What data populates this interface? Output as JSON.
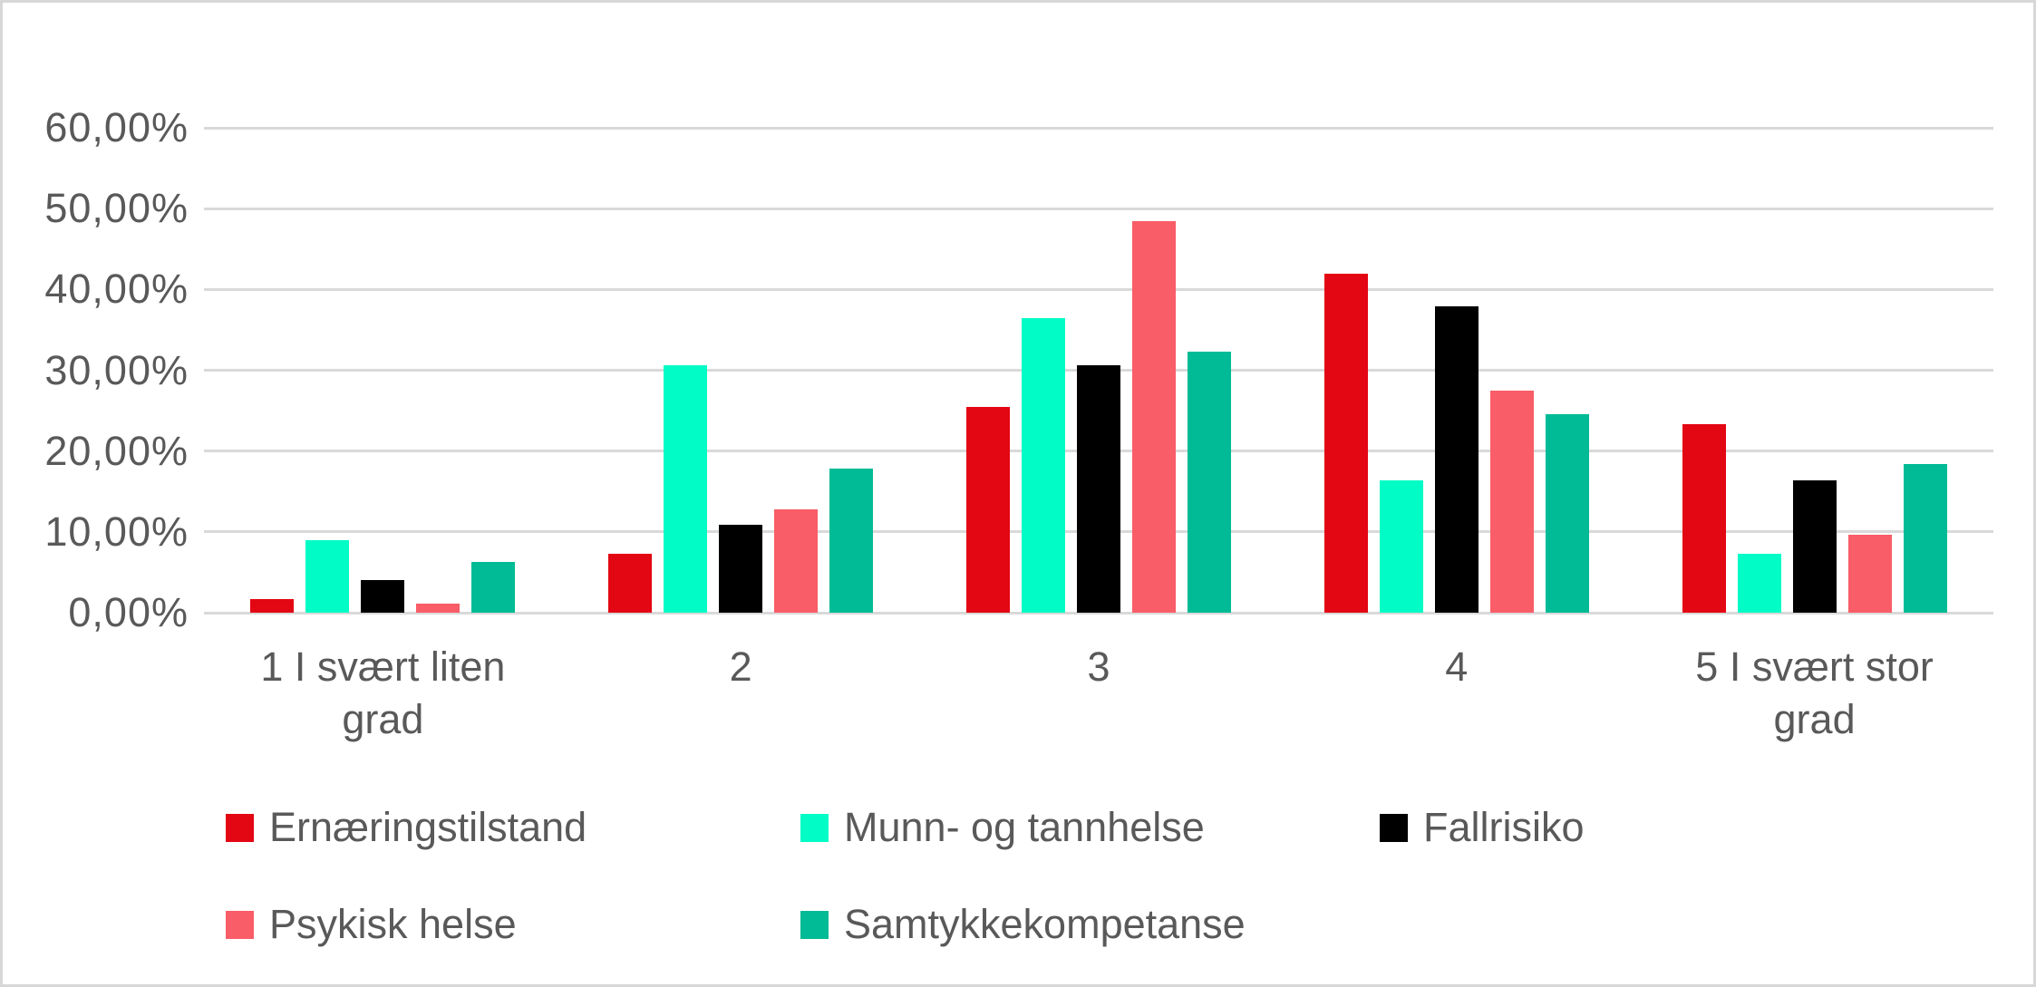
{
  "figure": {
    "background": "#ffffff",
    "frame_border_color": "#d7d7d7",
    "text_color": "#595959",
    "gridline_color": "#d9d9d9"
  },
  "chart_data": {
    "type": "bar",
    "title": "",
    "xlabel": "",
    "ylabel": "",
    "categories": [
      "1 I svært liten grad",
      "2",
      "3",
      "4",
      "5 I svært stor grad"
    ],
    "series": [
      {
        "name": "Ernæringstilstand",
        "color": "#e30613",
        "values": [
          1.7,
          7.3,
          25.5,
          42.0,
          23.3
        ]
      },
      {
        "name": "Munn- og tannhelse",
        "color": "#02fcc6",
        "values": [
          9.0,
          30.6,
          36.4,
          16.4,
          7.3
        ]
      },
      {
        "name": "Fallrisiko",
        "color": "#000000",
        "values": [
          4.0,
          10.9,
          30.6,
          37.9,
          16.4
        ]
      },
      {
        "name": "Psykisk helse",
        "color": "#f95d67",
        "values": [
          1.1,
          12.8,
          48.5,
          27.5,
          9.6
        ]
      },
      {
        "name": "Samtykkekompetanse",
        "color": "#00bb95",
        "values": [
          6.3,
          17.8,
          32.3,
          24.6,
          18.4
        ]
      }
    ],
    "y_axis": {
      "min": 0,
      "max": 60,
      "step": 10,
      "tick_labels": [
        "0,00%",
        "10,00%",
        "20,00%",
        "30,00%",
        "40,00%",
        "50,00%",
        "60,00%"
      ],
      "unit": "percent",
      "decimal_separator": ","
    },
    "grid": true,
    "gridlines": "horizontal",
    "legend_position": "bottom",
    "legend_rows": [
      [
        "Ernæringstilstand",
        "Munn- og tannhelse",
        "Fallrisiko"
      ],
      [
        "Psykisk helse",
        "Samtykkekompetanse"
      ]
    ]
  }
}
